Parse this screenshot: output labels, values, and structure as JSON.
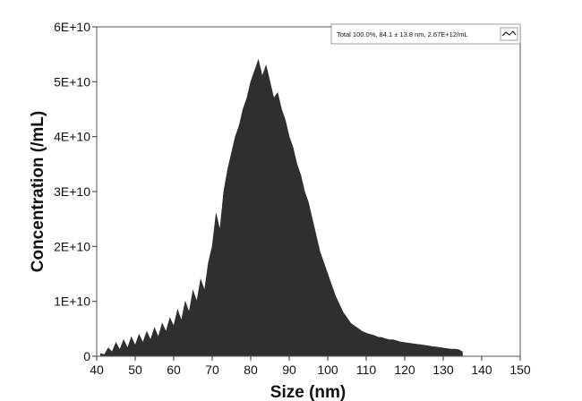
{
  "chart_data": {
    "type": "area",
    "xlabel": "Size (nm)",
    "ylabel": "Concentration (/mL)",
    "xlim": [
      40,
      150
    ],
    "ylim": [
      0,
      60000000000
    ],
    "x_ticks": [
      "40",
      "50",
      "60",
      "70",
      "80",
      "90",
      "100",
      "110",
      "120",
      "130",
      "140",
      "150"
    ],
    "y_ticks": [
      "0",
      "1E+10",
      "2E+10",
      "3E+10",
      "4E+10",
      "5E+10",
      "6E+10"
    ],
    "fill_color": "#2f2f2f",
    "grid": false,
    "legend": {
      "position": "top-right",
      "text": "Total  100.0%,  84.1 ± 13.8 nm,  2.67E+12/mL"
    },
    "series": [
      {
        "x": [
          41,
          42,
          43,
          44,
          45,
          46,
          47,
          48,
          49,
          50,
          51,
          52,
          53,
          54,
          55,
          56,
          57,
          58,
          59,
          60,
          61,
          62,
          63,
          64,
          65,
          66,
          67,
          68,
          69,
          70,
          71,
          72,
          73,
          74,
          75,
          76,
          77,
          78,
          79,
          80,
          81,
          82,
          83,
          84,
          85,
          86,
          87,
          88,
          89,
          90,
          91,
          92,
          93,
          94,
          95,
          96,
          97,
          98,
          99,
          100,
          101,
          102,
          103,
          104,
          105,
          106,
          107,
          108,
          109,
          110,
          111,
          112,
          113,
          114,
          115,
          116,
          117,
          118,
          119,
          120,
          121,
          122,
          123,
          124,
          125,
          126,
          127,
          128,
          129,
          130,
          131,
          132,
          133,
          134,
          135
        ],
        "y": [
          500000000,
          300000000,
          1500000000,
          800000000,
          2500000000,
          1200000000,
          3000000000,
          1500000000,
          3500000000,
          2000000000,
          4000000000,
          2500000000,
          4500000000,
          3000000000,
          5200000000,
          3500000000,
          6000000000,
          4500000000,
          7000000000,
          5500000000,
          8500000000,
          6500000000,
          10000000000,
          8000000000,
          12000000000,
          10000000000,
          14000000000,
          12000000000,
          17000000000,
          20000000000,
          26000000000,
          23000000000,
          30000000000,
          34000000000,
          37000000000,
          40000000000,
          42000000000,
          45000000000,
          47000000000,
          50000000000,
          52000000000,
          54000000000,
          51000000000,
          53000000000,
          50000000000,
          47000000000,
          48000000000,
          45000000000,
          43000000000,
          40000000000,
          38000000000,
          35000000000,
          33000000000,
          30000000000,
          28000000000,
          25000000000,
          22000000000,
          19000000000,
          17000000000,
          15000000000,
          13000000000,
          11000000000,
          9500000000,
          8000000000,
          7000000000,
          6000000000,
          5500000000,
          5000000000,
          4500000000,
          4200000000,
          4000000000,
          3800000000,
          3500000000,
          3400000000,
          3200000000,
          3000000000,
          3000000000,
          2800000000,
          2600000000,
          2500000000,
          2400000000,
          2300000000,
          2200000000,
          2100000000,
          2000000000,
          1900000000,
          1800000000,
          1700000000,
          1600000000,
          1500000000,
          1400000000,
          1300000000,
          1300000000,
          1200000000,
          800000000
        ]
      }
    ]
  }
}
